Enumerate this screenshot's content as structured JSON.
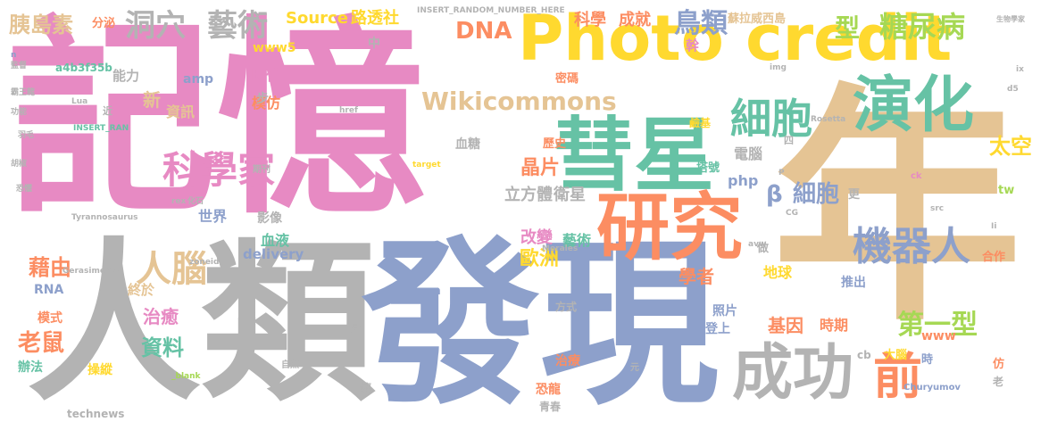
{
  "palette": {
    "pink": "#e78ac3",
    "tan": "#e5c494",
    "grey": "#b3b3b3",
    "blue": "#8da0cb",
    "green": "#66c2a5",
    "orange": "#fc8d62",
    "yellow": "#ffd92f",
    "lime": "#a6d854"
  },
  "words": [
    "記憶",
    "年",
    "人類",
    "發現",
    "Photo credit",
    "彗星",
    "研究",
    "成功",
    "前",
    "演化",
    "細胞",
    "科學家",
    "人腦",
    "機器人",
    "型",
    "糖尿病",
    "洞穴",
    "藝術",
    "鳥類",
    "胰島素",
    "DNA",
    "Wikicommons",
    "β",
    "細胞",
    "第一型",
    "科學",
    "成就",
    "Source",
    "路透社",
    "太空",
    "晶片",
    "立方體",
    "衛星",
    "歐洲",
    "藉由",
    "老鼠",
    "資料",
    "治癒",
    "學者",
    "地球",
    "基因",
    "時期",
    "改變",
    "藝術",
    "php",
    "電腦",
    "血糖",
    "血液",
    "世界",
    "影像",
    "新",
    "資訊",
    "模仿",
    "時代",
    "amp",
    "www5",
    "a4b3f35b",
    "能力",
    "分泌",
    "INSERT_RANDOM_NUMBER_HERE",
    "technews",
    "delivery",
    "RNA",
    "終於",
    "模式",
    "辦法",
    "操縱",
    "治療",
    "恐龍",
    "青春",
    "方式",
    "照片",
    "登上",
    "推出",
    "合作",
    "www",
    "tw",
    "大腦",
    "時",
    "cb",
    "Churyumov",
    "Gerasimenko",
    "Tyrannosaurus",
    "Morales",
    "Lua",
    "INSERT_RAN",
    "href",
    "target",
    "中",
    "步",
    "密碼",
    "歷史",
    "幹",
    "鹼基",
    "塔號",
    "蘇拉威西島",
    "生物學家",
    "監督",
    "霸王龍",
    "羽毛",
    "功能",
    "胡椒",
    "恐懼",
    "自然",
    "期刊",
    "化石",
    "rex",
    "_blank",
    "img",
    "src",
    "CG",
    "zoneid",
    "Rosetta",
    "avw",
    "ck",
    "P",
    "n",
    "ix",
    "d5",
    "Ii",
    "更",
    "做",
    "四",
    "仿",
    "老",
    "元",
    "壞",
    "身",
    "a",
    "近"
  ]
}
